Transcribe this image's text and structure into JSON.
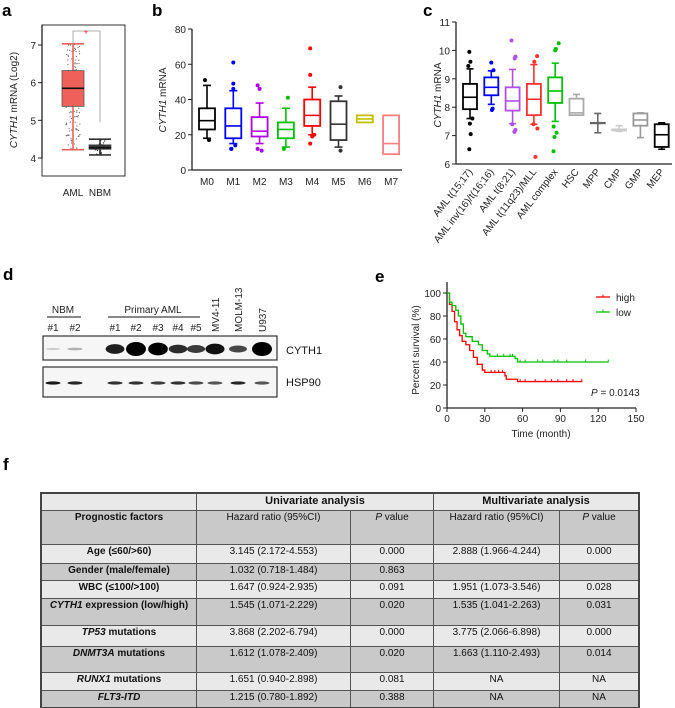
{
  "panel_labels": {
    "a": "a",
    "b": "b",
    "c": "c",
    "d": "d",
    "e": "e",
    "f": "f"
  },
  "chart_data": [
    {
      "id": "a",
      "type": "box",
      "ylabel_gene": "CYTH1",
      "ylabel_rest": " mRNA (Log2)",
      "categories": [
        "AML",
        "NBM"
      ],
      "ylim": [
        3.5,
        7.5
      ],
      "yticks": [
        "4",
        "5",
        "6",
        "7"
      ],
      "ytick_values": [
        4,
        5,
        6,
        7
      ],
      "significance": "*",
      "significance_color": "#ff3030",
      "boxes": [
        {
          "name": "AML",
          "q1": 5.37,
          "median": 5.85,
          "q3": 6.32,
          "whisker_low": 4.22,
          "whisker_high": 7.03,
          "color": "#f0605a",
          "fill": true
        },
        {
          "name": "NBM",
          "q1": 4.23,
          "median": 4.27,
          "q3": 4.35,
          "whisker_low": 4.08,
          "whisker_high": 4.5,
          "color": "#333333",
          "fill": true
        }
      ]
    },
    {
      "id": "b",
      "type": "box",
      "ylabel_gene": "CYTH1",
      "ylabel_rest": " mRNA",
      "categories": [
        "M0",
        "M1",
        "M2",
        "M3",
        "M4",
        "M5",
        "M6",
        "M7"
      ],
      "ylim": [
        0,
        80
      ],
      "yticks": [
        "0",
        "20",
        "40",
        "60",
        "80"
      ],
      "ytick_values": [
        0,
        20,
        40,
        60,
        80
      ],
      "boxes": [
        {
          "name": "M0",
          "q1": 23,
          "median": 28,
          "q3": 35,
          "whisker_low": 18,
          "whisker_high": 48,
          "outliers": [
            17,
            51
          ],
          "color": "#000000"
        },
        {
          "name": "M1",
          "q1": 18,
          "median": 25,
          "q3": 35,
          "whisker_low": 15,
          "whisker_high": 45,
          "outliers": [
            12,
            12,
            14,
            46,
            49,
            61
          ],
          "color": "#0000ff"
        },
        {
          "name": "M2",
          "q1": 19,
          "median": 22,
          "q3": 30,
          "whisker_low": 15,
          "whisker_high": 38,
          "outliers": [
            11,
            12,
            46,
            48
          ],
          "color": "#b000e8"
        },
        {
          "name": "M3",
          "q1": 18,
          "median": 23,
          "q3": 27,
          "whisker_low": 13,
          "whisker_high": 35,
          "outliers": [
            12,
            41
          ],
          "color": "#00c000"
        },
        {
          "name": "M4",
          "q1": 25,
          "median": 31,
          "q3": 40,
          "whisker_low": 20,
          "whisker_high": 47,
          "outliers": [
            15,
            19,
            20,
            54,
            69
          ],
          "color": "#ff0000"
        },
        {
          "name": "M5",
          "q1": 17,
          "median": 26,
          "q3": 39,
          "whisker_low": 13,
          "whisker_high": 42,
          "outliers": [
            11,
            47
          ],
          "color": "#333333"
        },
        {
          "name": "M6",
          "q1": 27,
          "median": 29,
          "q3": 31,
          "whisker_low": 27,
          "whisker_high": 31,
          "outliers": [],
          "color": "#c0c000"
        },
        {
          "name": "M7",
          "q1": 9,
          "median": 15,
          "q3": 31,
          "whisker_low": 9,
          "whisker_high": 31,
          "outliers": [],
          "color": "#ff8080"
        }
      ]
    },
    {
      "id": "c",
      "type": "box",
      "ylabel_gene": "CYTH1",
      "ylabel_rest": " mRNA",
      "categories": [
        "AML t(15;17)",
        "AML inv(16)/t(16;16)",
        "AML t(8;21)",
        "AML t(11q23)/MLL",
        "AML complex",
        "HSC",
        "MPP",
        "CMP",
        "GMP",
        "MEP"
      ],
      "ylim": [
        6,
        11
      ],
      "yticks": [
        "6",
        "7",
        "8",
        "9",
        "10",
        "11"
      ],
      "ytick_values": [
        6,
        7,
        8,
        9,
        10,
        11
      ],
      "boxes": [
        {
          "name": "AML t(15;17)",
          "q1": 7.93,
          "median": 8.35,
          "q3": 8.82,
          "whisker_low": 7.6,
          "whisker_high": 9.35,
          "outliers": [
            6.52,
            7.05,
            7.42,
            7.6,
            9.45,
            9.6,
            9.95
          ],
          "color": "#000000"
        },
        {
          "name": "AML inv(16)/t(16;16)",
          "q1": 8.42,
          "median": 8.7,
          "q3": 9.05,
          "whisker_low": 8.1,
          "whisker_high": 9.28,
          "outliers": [
            7.9,
            7.95,
            9.3,
            9.57
          ],
          "color": "#0000ff"
        },
        {
          "name": "AML t(8;21)",
          "q1": 7.88,
          "median": 8.22,
          "q3": 8.7,
          "whisker_low": 7.42,
          "whisker_high": 9.33,
          "outliers": [
            7.13,
            7.2,
            7.4,
            9.72,
            9.78,
            10.35
          ],
          "color": "#b050e8"
        },
        {
          "name": "AML t(11q23)/MLL",
          "q1": 7.72,
          "median": 8.28,
          "q3": 8.82,
          "whisker_low": 7.4,
          "whisker_high": 9.5,
          "outliers": [
            6.25,
            7.25,
            7.4,
            9.6,
            9.8
          ],
          "color": "#ff3030"
        },
        {
          "name": "AML complex",
          "q1": 8.15,
          "median": 8.57,
          "q3": 9.05,
          "whisker_low": 7.5,
          "whisker_high": 9.55,
          "outliers": [
            6.45,
            6.95,
            7.1,
            7.32,
            10.0,
            10.05,
            10.25
          ],
          "color": "#00c000"
        },
        {
          "name": "HSC",
          "q1": 7.72,
          "median": 7.8,
          "q3": 8.3,
          "whisker_low": 7.72,
          "whisker_high": 8.45,
          "outliers": [],
          "color": "#aaaaaa"
        },
        {
          "name": "MPP",
          "q1": 7.45,
          "median": 7.45,
          "q3": 7.45,
          "whisker_low": 7.1,
          "whisker_high": 7.78,
          "outliers": [],
          "color": "#666666"
        },
        {
          "name": "CMP",
          "q1": 7.18,
          "median": 7.2,
          "q3": 7.22,
          "whisker_low": 7.15,
          "whisker_high": 7.35,
          "outliers": [],
          "color": "#cccccc"
        },
        {
          "name": "GMP",
          "q1": 7.35,
          "median": 7.55,
          "q3": 7.78,
          "whisker_low": 6.93,
          "whisker_high": 7.8,
          "outliers": [],
          "color": "#999999"
        },
        {
          "name": "MEP",
          "q1": 6.6,
          "median": 7.03,
          "q3": 7.4,
          "whisker_low": 6.52,
          "whisker_high": 7.45,
          "outliers": [],
          "color": "#000000"
        }
      ]
    },
    {
      "id": "e",
      "type": "line",
      "xlabel": "Time (month)",
      "ylabel": "Percent survival (%)",
      "xlim": [
        0,
        150
      ],
      "ylim": [
        0,
        100
      ],
      "xticks": [
        "0",
        "30",
        "60",
        "90",
        "120",
        "150"
      ],
      "xtick_values": [
        0,
        30,
        60,
        90,
        120,
        150
      ],
      "yticks": [
        "0",
        "20",
        "40",
        "60",
        "80",
        "100"
      ],
      "ytick_values": [
        0,
        20,
        40,
        60,
        80,
        100
      ],
      "legend_position": "top-right",
      "annotation_p": "P",
      "annotation_value": " = 0.0143",
      "series": [
        {
          "name": "high",
          "color": "#ff0000",
          "x": [
            0,
            2,
            4,
            6,
            8,
            10,
            12,
            15,
            18,
            21,
            24,
            28,
            30,
            46,
            47,
            56,
            107
          ],
          "y": [
            100,
            90,
            84,
            75,
            68,
            63,
            58,
            55,
            50,
            44,
            38,
            33,
            31,
            28,
            25,
            23,
            23
          ],
          "censored_x": [
            35,
            38,
            41,
            44,
            58,
            62,
            70,
            78,
            83,
            88,
            95,
            100,
            107
          ]
        },
        {
          "name": "low",
          "color": "#00c000",
          "x": [
            0,
            2,
            4,
            7,
            9,
            11,
            13,
            15,
            20,
            25,
            28,
            32,
            34,
            54,
            56,
            128
          ],
          "y": [
            100,
            92,
            89,
            85,
            80,
            73,
            65,
            62,
            58,
            55,
            50,
            47,
            45,
            43,
            40,
            40
          ],
          "censored_x": [
            40,
            45,
            50,
            52,
            58,
            62,
            72,
            76,
            85,
            88,
            95,
            110,
            128
          ]
        }
      ]
    }
  ],
  "western_blot": {
    "groups": [
      {
        "label": "NBM",
        "lanes": [
          "#1",
          "#2"
        ]
      },
      {
        "label": "Primary AML",
        "lanes": [
          "#1",
          "#2",
          "#3",
          "#4",
          "#5"
        ]
      }
    ],
    "cell_lines": [
      "MV4-11",
      "MOLM-13",
      "U937"
    ],
    "blots": [
      "CYTH1",
      "HSP90"
    ],
    "cyth1_intensity": [
      0.15,
      0.25,
      0.8,
      1.0,
      0.95,
      0.75,
      0.7,
      0.85,
      0.65,
      1.0
    ],
    "hsp90_intensity": [
      0.9,
      0.85,
      0.8,
      0.8,
      0.75,
      0.8,
      0.7,
      0.65,
      0.85,
      0.65
    ]
  },
  "table": {
    "group_headers": [
      "Univariate analysis",
      "Multivariate analysis"
    ],
    "col_headers": {
      "factor": "Prognostic factors",
      "hr": "Hazard ratio (95%CI)",
      "p_italic": "P",
      "p_rest": " value"
    },
    "rows": [
      {
        "gene": "",
        "factor": "Age (≤60/>60)",
        "uni_hr": "3.145 (2.172-4.553)",
        "uni_p": "0.000",
        "multi_hr": "2.888 (1.966-4.244)",
        "multi_p": "0.000"
      },
      {
        "gene": "",
        "factor": "Gender (male/female)",
        "uni_hr": "1.032 (0.718-1.484)",
        "uni_p": "0.863",
        "multi_hr": "",
        "multi_p": ""
      },
      {
        "gene": "",
        "factor": "WBC (≤100/>100)",
        "uni_hr": "1.647 (0.924-2.935)",
        "uni_p": "0.091",
        "multi_hr": "1.951 (1.073-3.546)",
        "multi_p": "0.028"
      },
      {
        "gene": "CYTH1",
        "factor": " expression (low/high)",
        "uni_hr": "1.545 (1.071-2.229)",
        "uni_p": "0.020",
        "multi_hr": "1.535 (1.041-2.263)",
        "multi_p": "0.031"
      },
      {
        "gene": "TP53",
        "factor": " mutations",
        "uni_hr": "3.868 (2.202-6.794)",
        "uni_p": "0.000",
        "multi_hr": "3.775 (2.066-6.898)",
        "multi_p": "0.000"
      },
      {
        "gene": "DNMT3A",
        "factor": " mutations",
        "uni_hr": "1.612 (1.078-2.409)",
        "uni_p": "0.020",
        "multi_hr": "1.663 (1.110-2.493)",
        "multi_p": "0.014"
      },
      {
        "gene": "RUNX1",
        "factor": " mutations",
        "uni_hr": "1.651 (0.940-2.898)",
        "uni_p": "0.081",
        "multi_hr": "NA",
        "multi_p": "NA"
      },
      {
        "gene": "FLT3-ITD",
        "factor": "",
        "uni_hr": "1.215 (0.780-1.892)",
        "uni_p": "0.388",
        "multi_hr": "NA",
        "multi_p": "NA"
      }
    ]
  }
}
